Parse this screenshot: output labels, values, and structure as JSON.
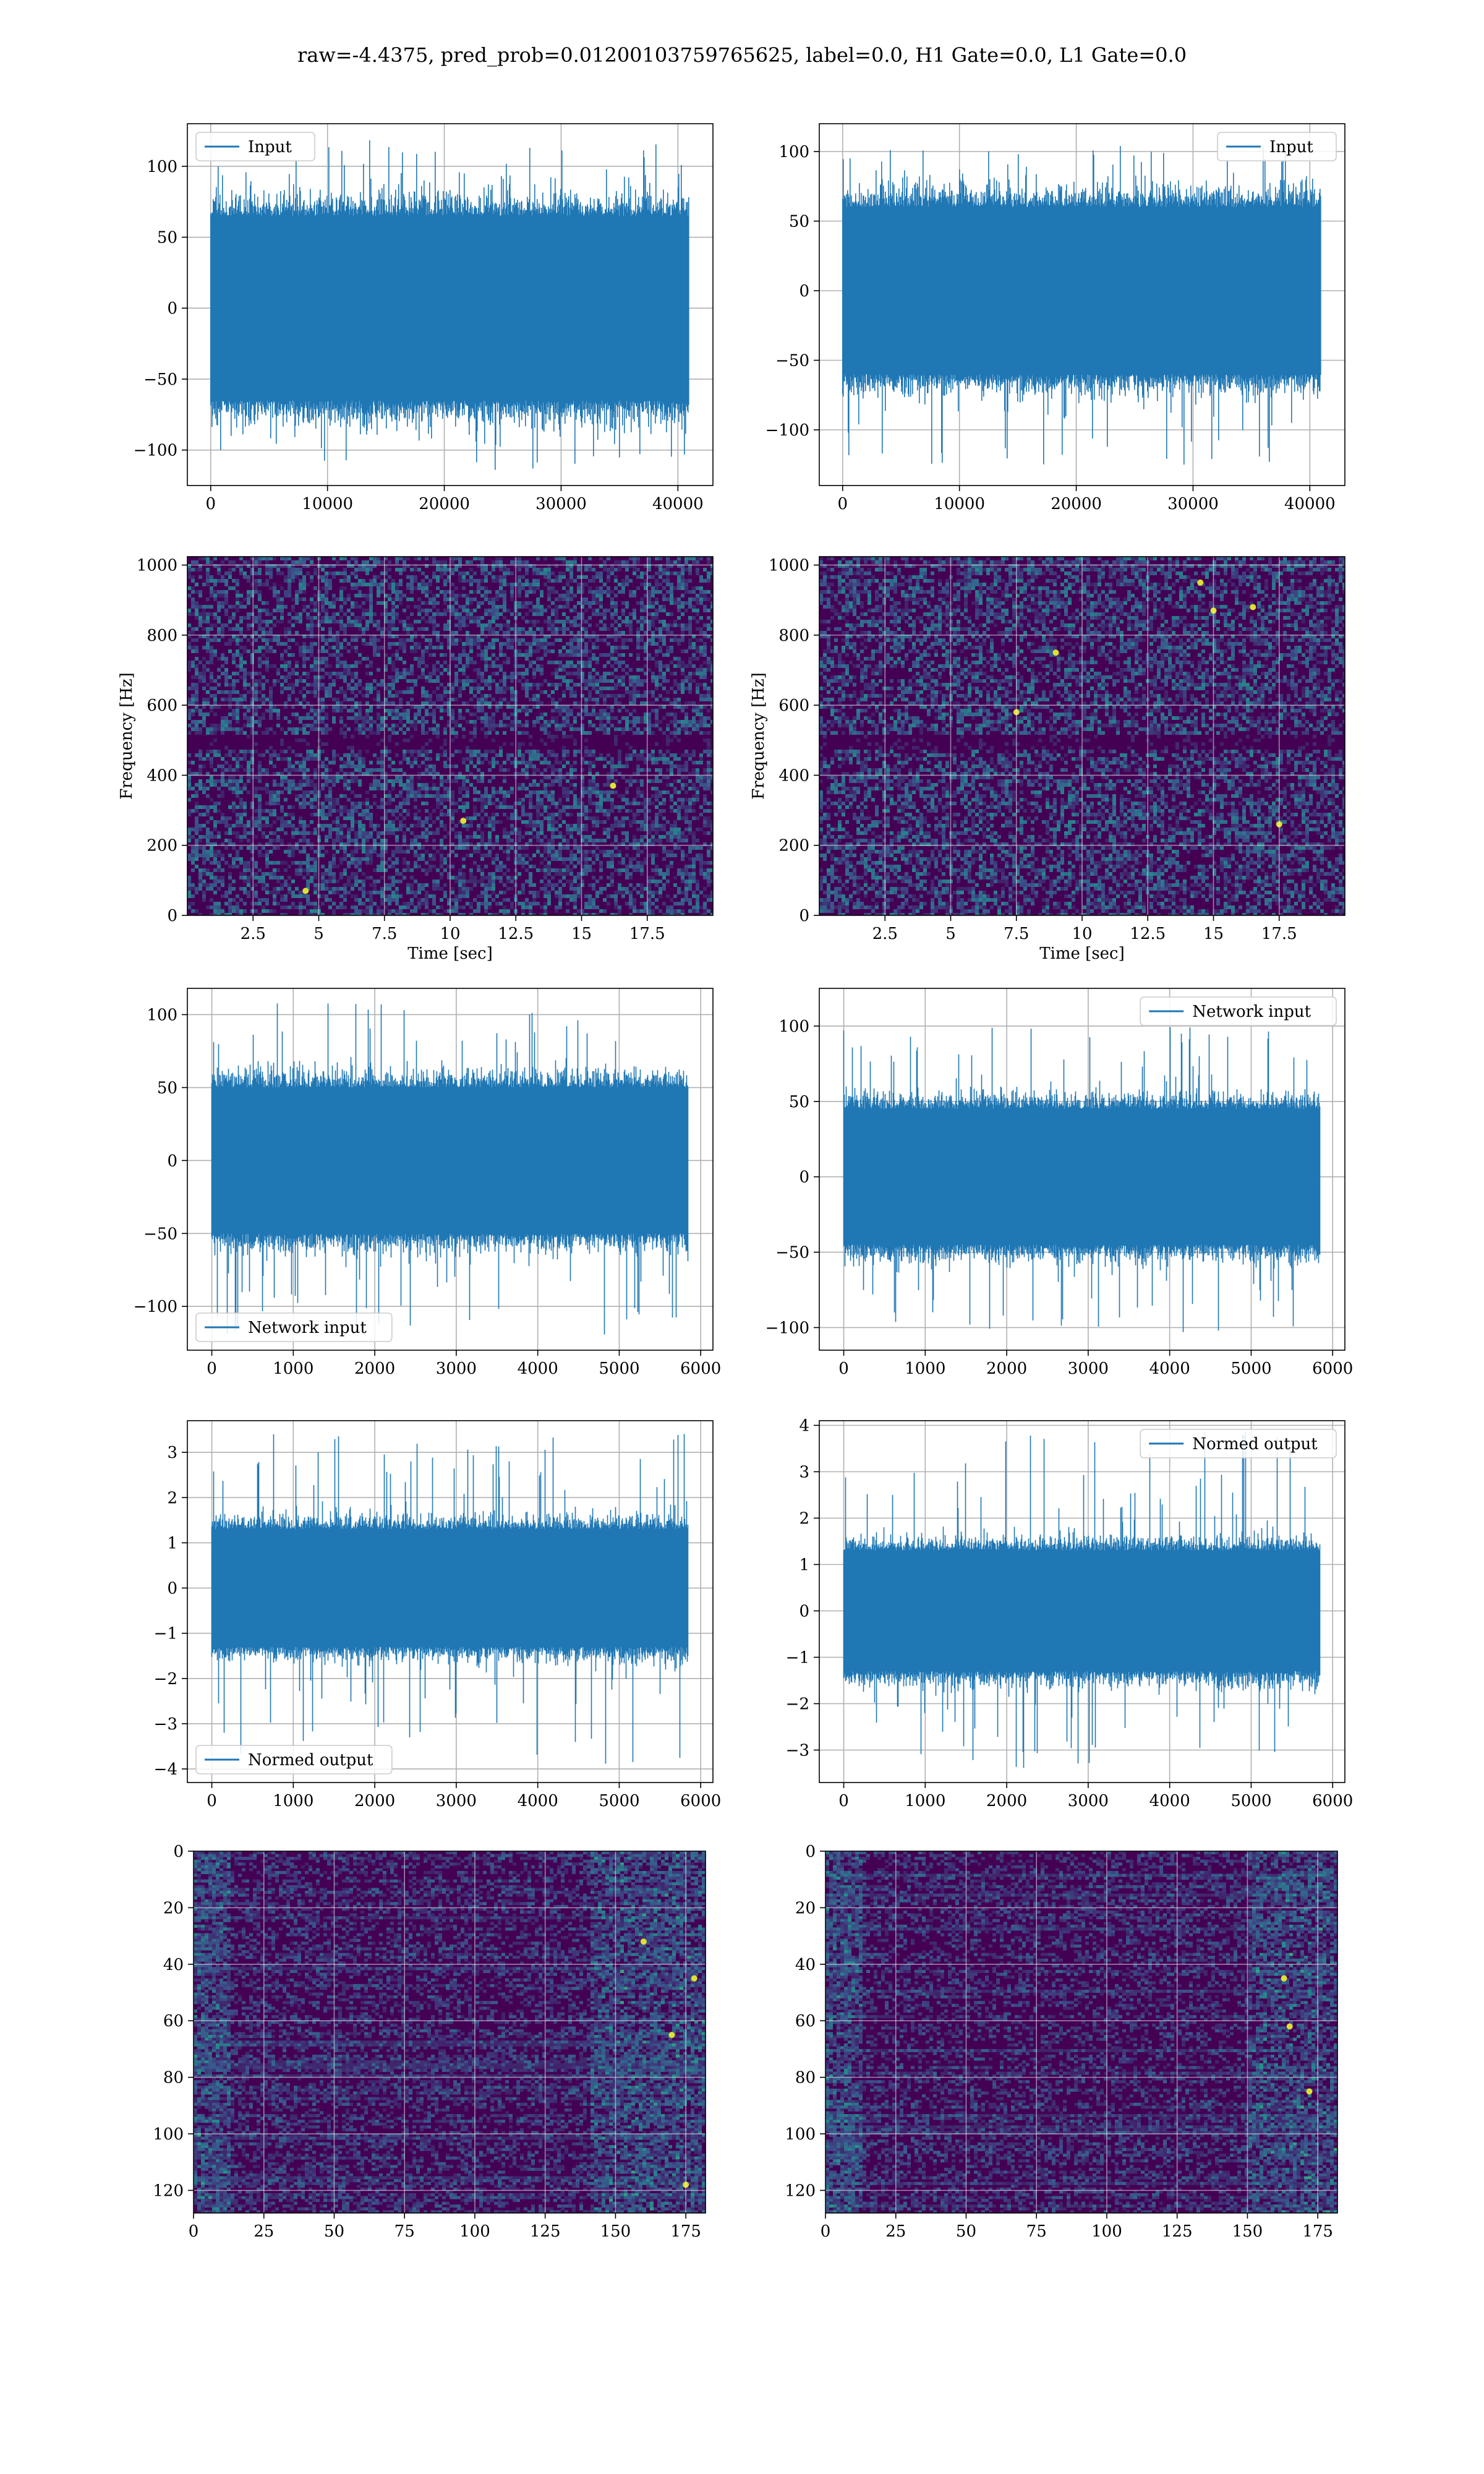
{
  "suptitle": "raw=-4.4375, pred_prob=0.01200103759765625, label=0.0, H1 Gate=0.0, L1 Gate=0.0",
  "colors": {
    "series": "#1f77b4",
    "heat_bg": "#440154",
    "grid": "#b0b0b0",
    "viridis": [
      "#440154",
      "#3b528b",
      "#21918c",
      "#5ec962",
      "#fde725"
    ]
  },
  "chart_data": [
    {
      "id": "input_h1",
      "type": "line",
      "row": 0,
      "col": 0,
      "series": [
        {
          "name": "Input",
          "n_samples": 40960,
          "amplitude_typical": [
            -65,
            65
          ],
          "amplitude_peaks": [
            -115,
            120
          ]
        }
      ],
      "xlim": [
        -2000,
        43000
      ],
      "ylim": [
        -125,
        130
      ],
      "xticks": [
        0,
        10000,
        20000,
        30000,
        40000
      ],
      "yticks": [
        -100,
        -50,
        0,
        50,
        100
      ],
      "legend": "upper left",
      "grid": true,
      "xlabel": "",
      "ylabel": ""
    },
    {
      "id": "input_l1",
      "type": "line",
      "row": 0,
      "col": 1,
      "series": [
        {
          "name": "Input",
          "n_samples": 40960,
          "amplitude_typical": [
            -60,
            60
          ],
          "amplitude_peaks": [
            -125,
            105
          ]
        }
      ],
      "xlim": [
        -2000,
        43000
      ],
      "ylim": [
        -140,
        120
      ],
      "xticks": [
        0,
        10000,
        20000,
        30000,
        40000
      ],
      "yticks": [
        -100,
        -50,
        0,
        50,
        100
      ],
      "legend": "upper right",
      "grid": true,
      "xlabel": "",
      "ylabel": ""
    },
    {
      "id": "spec_h1",
      "type": "heatmap",
      "row": 1,
      "col": 0,
      "xlim": [
        0,
        20
      ],
      "ylim": [
        0,
        1024
      ],
      "xticks": [
        2.5,
        5.0,
        7.5,
        10.0,
        12.5,
        15.0,
        17.5
      ],
      "yticks": [
        0,
        200,
        400,
        600,
        800,
        1000
      ],
      "xlabel": "Time [sec]",
      "ylabel": "Frequency [Hz]",
      "dark_band_hz": [
        480,
        520
      ],
      "bright_spots": [
        [
          10.5,
          270
        ],
        [
          4.5,
          70
        ],
        [
          16.2,
          370
        ]
      ],
      "grid": true
    },
    {
      "id": "spec_l1",
      "type": "heatmap",
      "row": 1,
      "col": 1,
      "xlim": [
        0,
        20
      ],
      "ylim": [
        0,
        1024
      ],
      "xticks": [
        2.5,
        5.0,
        7.5,
        10.0,
        12.5,
        15.0,
        17.5
      ],
      "yticks": [
        0,
        200,
        400,
        600,
        800,
        1000
      ],
      "xlabel": "Time [sec]",
      "ylabel": "Frequency [Hz]",
      "dark_band_hz": [
        480,
        520
      ],
      "bright_spots": [
        [
          9.0,
          750
        ],
        [
          15.0,
          870
        ],
        [
          16.5,
          880
        ],
        [
          7.5,
          580
        ],
        [
          17.5,
          260
        ],
        [
          14.5,
          950
        ]
      ],
      "grid": true
    },
    {
      "id": "net_h1",
      "type": "line",
      "row": 2,
      "col": 0,
      "series": [
        {
          "name": "Network input",
          "n_samples": 5850,
          "amplitude_typical": [
            -50,
            50
          ],
          "amplitude_peaks": [
            -120,
            108
          ]
        }
      ],
      "xlim": [
        -300,
        6150
      ],
      "ylim": [
        -130,
        118
      ],
      "xticks": [
        0,
        1000,
        2000,
        3000,
        4000,
        5000,
        6000
      ],
      "yticks": [
        -100,
        -50,
        0,
        50,
        100
      ],
      "legend": "lower left",
      "grid": true,
      "xlabel": "",
      "ylabel": ""
    },
    {
      "id": "net_l1",
      "type": "line",
      "row": 2,
      "col": 1,
      "series": [
        {
          "name": "Network input",
          "n_samples": 5850,
          "amplitude_typical": [
            -45,
            45
          ],
          "amplitude_peaks": [
            -105,
            100
          ]
        }
      ],
      "xlim": [
        -300,
        6150
      ],
      "ylim": [
        -115,
        125
      ],
      "xticks": [
        0,
        1000,
        2000,
        3000,
        4000,
        5000,
        6000
      ],
      "yticks": [
        -100,
        -50,
        0,
        50,
        100
      ],
      "legend": "upper right",
      "grid": true,
      "xlabel": "",
      "ylabel": ""
    },
    {
      "id": "norm_h1",
      "type": "line",
      "row": 3,
      "col": 0,
      "series": [
        {
          "name": "Normed output",
          "n_samples": 5850,
          "amplitude_typical": [
            -1.3,
            1.3
          ],
          "amplitude_peaks": [
            -3.9,
            3.5
          ]
        }
      ],
      "xlim": [
        -300,
        6150
      ],
      "ylim": [
        -4.3,
        3.7
      ],
      "xticks": [
        0,
        1000,
        2000,
        3000,
        4000,
        5000,
        6000
      ],
      "yticks": [
        -4,
        -3,
        -2,
        -1,
        0,
        1,
        2,
        3
      ],
      "legend": "lower left",
      "grid": true,
      "xlabel": "",
      "ylabel": ""
    },
    {
      "id": "norm_l1",
      "type": "line",
      "row": 3,
      "col": 1,
      "series": [
        {
          "name": "Normed output",
          "n_samples": 5850,
          "amplitude_typical": [
            -1.3,
            1.3
          ],
          "amplitude_peaks": [
            -3.4,
            3.9
          ]
        }
      ],
      "xlim": [
        -300,
        6150
      ],
      "ylim": [
        -3.7,
        4.1
      ],
      "xticks": [
        0,
        1000,
        2000,
        3000,
        4000,
        5000,
        6000
      ],
      "yticks": [
        -3,
        -2,
        -1,
        0,
        1,
        2,
        3,
        4
      ],
      "legend": "upper right",
      "grid": true,
      "xlabel": "",
      "ylabel": ""
    },
    {
      "id": "feat_h1",
      "type": "heatmap",
      "row": 4,
      "col": 0,
      "xlim": [
        0,
        182
      ],
      "ylim": [
        128,
        0
      ],
      "xticks": [
        0,
        25,
        50,
        75,
        100,
        125,
        150,
        175
      ],
      "yticks": [
        0,
        20,
        40,
        60,
        80,
        100,
        120
      ],
      "bright_region_x": [
        140,
        182
      ],
      "bright_spots": [
        [
          160,
          32
        ],
        [
          175,
          118
        ],
        [
          170,
          65
        ],
        [
          178,
          45
        ]
      ],
      "grid": true
    },
    {
      "id": "feat_l1",
      "type": "heatmap",
      "row": 4,
      "col": 1,
      "xlim": [
        0,
        182
      ],
      "ylim": [
        128,
        0
      ],
      "xticks": [
        0,
        25,
        50,
        75,
        100,
        125,
        150,
        175
      ],
      "yticks": [
        0,
        20,
        40,
        60,
        80,
        100,
        120
      ],
      "bright_region_x": [
        150,
        182
      ],
      "bright_spots": [
        [
          163,
          45
        ],
        [
          165,
          62
        ],
        [
          172,
          85
        ]
      ],
      "grid": true
    }
  ]
}
